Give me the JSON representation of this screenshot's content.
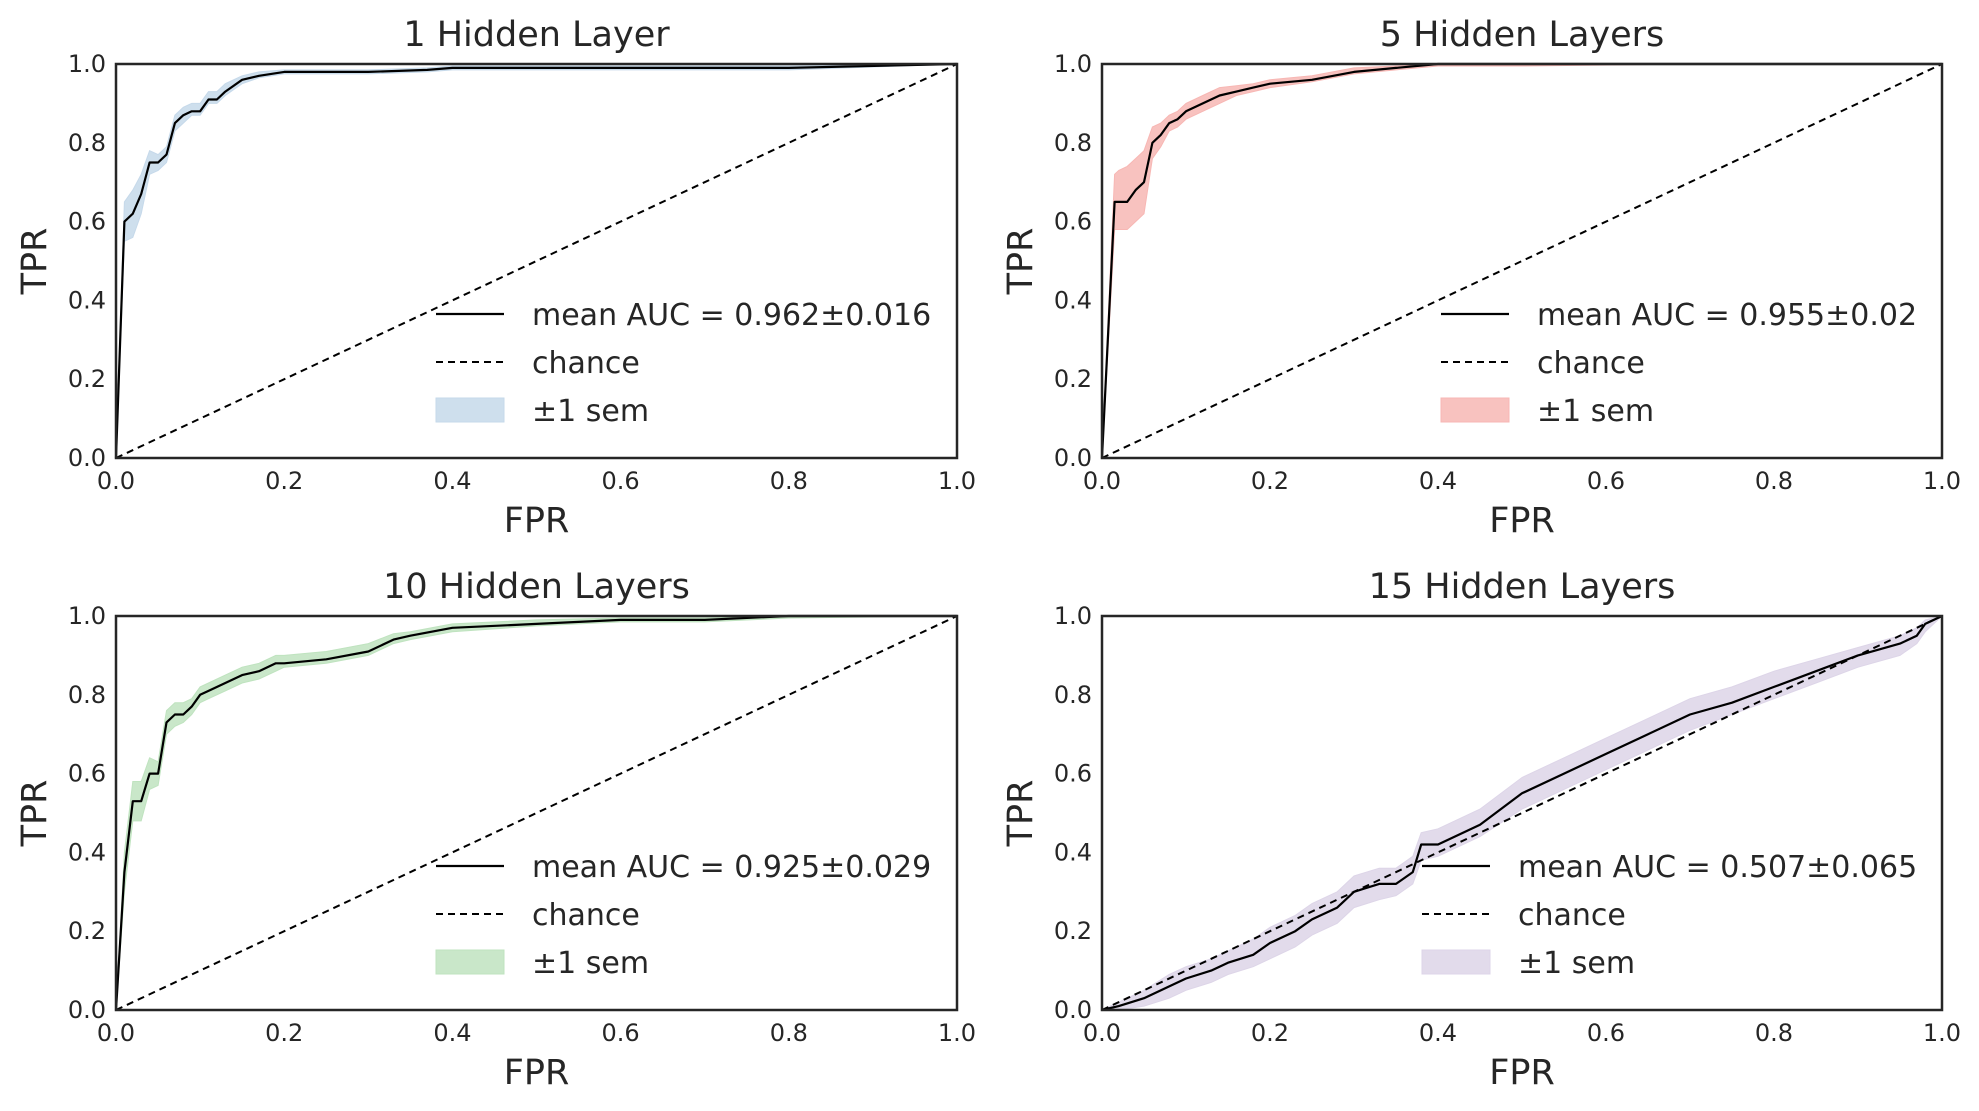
{
  "chart_data": [
    {
      "type": "line",
      "title": "1 Hidden Layer",
      "xlabel": "FPR",
      "ylabel": "TPR",
      "xlim": [
        0,
        1
      ],
      "ylim": [
        0,
        1
      ],
      "xticks": [
        "0.0",
        "0.2",
        "0.4",
        "0.6",
        "0.8",
        "1.0"
      ],
      "yticks": [
        "0.0",
        "0.2",
        "0.4",
        "0.6",
        "0.8",
        "1.0"
      ],
      "grid": false,
      "legend_position": "lower-right",
      "band_color": "#c6d9ea",
      "legend": [
        "mean AUC = 0.962±0.016",
        "chance",
        "±1 sem"
      ],
      "series": [
        {
          "label": "mean AUC = 0.962±0.016",
          "x": [
            0.0,
            0.01,
            0.02,
            0.03,
            0.04,
            0.05,
            0.06,
            0.07,
            0.08,
            0.09,
            0.1,
            0.11,
            0.12,
            0.13,
            0.15,
            0.17,
            0.2,
            0.25,
            0.3,
            0.37,
            0.4,
            0.5,
            0.6,
            0.8,
            1.0
          ],
          "y": [
            0.0,
            0.6,
            0.62,
            0.67,
            0.75,
            0.75,
            0.77,
            0.85,
            0.87,
            0.88,
            0.88,
            0.91,
            0.91,
            0.93,
            0.96,
            0.97,
            0.98,
            0.98,
            0.98,
            0.985,
            0.99,
            0.99,
            0.99,
            0.99,
            1.0
          ],
          "sem_lower": [
            0.0,
            0.55,
            0.56,
            0.62,
            0.72,
            0.73,
            0.75,
            0.83,
            0.85,
            0.87,
            0.87,
            0.9,
            0.9,
            0.92,
            0.95,
            0.965,
            0.975,
            0.975,
            0.975,
            0.98,
            0.985,
            0.985,
            0.985,
            0.985,
            1.0
          ],
          "sem_upper": [
            0.0,
            0.65,
            0.68,
            0.72,
            0.78,
            0.77,
            0.79,
            0.87,
            0.89,
            0.9,
            0.9,
            0.93,
            0.93,
            0.95,
            0.97,
            0.98,
            0.985,
            0.985,
            0.985,
            0.99,
            0.995,
            0.995,
            0.995,
            0.995,
            1.0
          ]
        },
        {
          "label": "chance",
          "x": [
            0,
            1
          ],
          "y": [
            0,
            1
          ]
        }
      ]
    },
    {
      "type": "line",
      "title": "5 Hidden Layers",
      "xlabel": "FPR",
      "ylabel": "TPR",
      "xlim": [
        0,
        1
      ],
      "ylim": [
        0,
        1
      ],
      "xticks": [
        "0.0",
        "0.2",
        "0.4",
        "0.6",
        "0.8",
        "1.0"
      ],
      "yticks": [
        "0.0",
        "0.2",
        "0.4",
        "0.6",
        "0.8",
        "1.0"
      ],
      "grid": false,
      "legend_position": "lower-right",
      "band_color": "#f7b7b4",
      "legend": [
        "mean AUC = 0.955±0.02",
        "chance",
        "±1 sem"
      ],
      "series": [
        {
          "label": "mean AUC = 0.955±0.02",
          "x": [
            0.0,
            0.015,
            0.02,
            0.03,
            0.04,
            0.05,
            0.06,
            0.07,
            0.08,
            0.09,
            0.1,
            0.12,
            0.14,
            0.16,
            0.18,
            0.2,
            0.25,
            0.3,
            0.35,
            0.4,
            0.5,
            0.7,
            1.0
          ],
          "y": [
            0.0,
            0.65,
            0.65,
            0.65,
            0.68,
            0.7,
            0.8,
            0.82,
            0.85,
            0.86,
            0.88,
            0.9,
            0.92,
            0.93,
            0.94,
            0.95,
            0.96,
            0.98,
            0.99,
            1.0,
            1.0,
            1.0,
            1.0
          ],
          "sem_lower": [
            0.0,
            0.58,
            0.58,
            0.58,
            0.6,
            0.62,
            0.76,
            0.79,
            0.83,
            0.84,
            0.86,
            0.88,
            0.9,
            0.92,
            0.93,
            0.94,
            0.955,
            0.975,
            0.985,
            0.995,
            0.995,
            1.0,
            1.0
          ],
          "sem_upper": [
            0.0,
            0.72,
            0.73,
            0.74,
            0.76,
            0.78,
            0.84,
            0.85,
            0.87,
            0.88,
            0.9,
            0.92,
            0.94,
            0.945,
            0.95,
            0.96,
            0.97,
            0.99,
            0.995,
            1.0,
            1.0,
            1.0,
            1.0
          ]
        },
        {
          "label": "chance",
          "x": [
            0,
            1
          ],
          "y": [
            0,
            1
          ]
        }
      ]
    },
    {
      "type": "line",
      "title": "10 Hidden Layers",
      "xlabel": "FPR",
      "ylabel": "TPR",
      "xlim": [
        0,
        1
      ],
      "ylim": [
        0,
        1
      ],
      "xticks": [
        "0.0",
        "0.2",
        "0.4",
        "0.6",
        "0.8",
        "1.0"
      ],
      "yticks": [
        "0.0",
        "0.2",
        "0.4",
        "0.6",
        "0.8",
        "1.0"
      ],
      "grid": false,
      "legend_position": "lower-right",
      "band_color": "#bfe3bf",
      "legend": [
        "mean AUC = 0.925±0.029",
        "chance",
        "±1 sem"
      ],
      "series": [
        {
          "label": "mean AUC = 0.925±0.029",
          "x": [
            0.0,
            0.01,
            0.02,
            0.03,
            0.04,
            0.05,
            0.06,
            0.07,
            0.08,
            0.09,
            0.1,
            0.11,
            0.13,
            0.15,
            0.17,
            0.19,
            0.2,
            0.25,
            0.3,
            0.33,
            0.35,
            0.4,
            0.5,
            0.6,
            0.7,
            0.8,
            1.0
          ],
          "y": [
            0.0,
            0.35,
            0.53,
            0.53,
            0.6,
            0.6,
            0.73,
            0.75,
            0.75,
            0.77,
            0.8,
            0.81,
            0.83,
            0.85,
            0.86,
            0.88,
            0.88,
            0.89,
            0.91,
            0.94,
            0.95,
            0.97,
            0.98,
            0.99,
            0.99,
            1.0,
            1.0
          ],
          "sem_lower": [
            0.0,
            0.3,
            0.48,
            0.48,
            0.56,
            0.57,
            0.7,
            0.72,
            0.73,
            0.75,
            0.78,
            0.79,
            0.81,
            0.83,
            0.84,
            0.86,
            0.87,
            0.88,
            0.9,
            0.93,
            0.94,
            0.96,
            0.975,
            0.985,
            0.985,
            0.995,
            1.0
          ],
          "sem_upper": [
            0.0,
            0.4,
            0.58,
            0.58,
            0.64,
            0.63,
            0.76,
            0.78,
            0.78,
            0.79,
            0.82,
            0.83,
            0.85,
            0.87,
            0.88,
            0.9,
            0.9,
            0.91,
            0.93,
            0.955,
            0.96,
            0.98,
            0.99,
            0.995,
            0.995,
            1.0,
            1.0
          ]
        },
        {
          "label": "chance",
          "x": [
            0,
            1
          ],
          "y": [
            0,
            1
          ]
        }
      ]
    },
    {
      "type": "line",
      "title": "15 Hidden Layers",
      "xlabel": "FPR",
      "ylabel": "TPR",
      "xlim": [
        0,
        1
      ],
      "ylim": [
        0,
        1
      ],
      "xticks": [
        "0.0",
        "0.2",
        "0.4",
        "0.6",
        "0.8",
        "1.0"
      ],
      "yticks": [
        "0.0",
        "0.2",
        "0.4",
        "0.6",
        "0.8",
        "1.0"
      ],
      "grid": false,
      "legend_position": "lower-right",
      "band_color": "#ddd5e8",
      "legend": [
        "mean AUC = 0.507±0.065",
        "chance",
        "±1 sem"
      ],
      "series": [
        {
          "label": "mean AUC = 0.507±0.065",
          "x": [
            0.0,
            0.02,
            0.05,
            0.08,
            0.1,
            0.13,
            0.15,
            0.18,
            0.2,
            0.23,
            0.25,
            0.28,
            0.3,
            0.33,
            0.35,
            0.37,
            0.38,
            0.4,
            0.45,
            0.5,
            0.55,
            0.6,
            0.65,
            0.7,
            0.75,
            0.8,
            0.85,
            0.9,
            0.95,
            0.97,
            0.98,
            1.0
          ],
          "y": [
            0.0,
            0.01,
            0.03,
            0.06,
            0.08,
            0.1,
            0.12,
            0.14,
            0.17,
            0.2,
            0.23,
            0.26,
            0.3,
            0.32,
            0.32,
            0.35,
            0.42,
            0.42,
            0.47,
            0.55,
            0.6,
            0.65,
            0.7,
            0.75,
            0.78,
            0.82,
            0.86,
            0.9,
            0.93,
            0.95,
            0.98,
            1.0
          ],
          "sem_lower": [
            0.0,
            0.0,
            0.01,
            0.03,
            0.05,
            0.07,
            0.09,
            0.11,
            0.13,
            0.16,
            0.19,
            0.22,
            0.26,
            0.28,
            0.29,
            0.32,
            0.38,
            0.39,
            0.44,
            0.51,
            0.56,
            0.61,
            0.66,
            0.71,
            0.75,
            0.79,
            0.83,
            0.87,
            0.9,
            0.93,
            0.96,
            1.0
          ],
          "sem_upper": [
            0.0,
            0.02,
            0.05,
            0.09,
            0.11,
            0.13,
            0.15,
            0.18,
            0.21,
            0.24,
            0.27,
            0.3,
            0.34,
            0.36,
            0.36,
            0.39,
            0.45,
            0.46,
            0.51,
            0.59,
            0.64,
            0.69,
            0.74,
            0.79,
            0.82,
            0.86,
            0.89,
            0.92,
            0.95,
            0.97,
            0.99,
            1.0
          ]
        },
        {
          "label": "chance",
          "x": [
            0,
            1
          ],
          "y": [
            0,
            1
          ]
        }
      ]
    }
  ]
}
